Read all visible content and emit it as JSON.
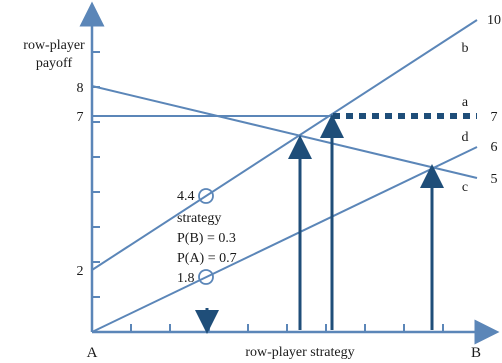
{
  "axis_labels": {
    "y_title_line1": "row-player",
    "y_title_line2": "payoff",
    "x_title": "row-player strategy",
    "x_start": "A",
    "x_end": "B"
  },
  "y_ticks": {
    "eight": "8",
    "seven": "7",
    "two": "2"
  },
  "right_values": {
    "ten": "10",
    "seven": "7",
    "six": "6",
    "five": "5"
  },
  "line_names": {
    "a": "a",
    "b": "b",
    "c": "c",
    "d": "d"
  },
  "annotations": {
    "upper_value": "4.4",
    "strategy_heading": "strategy",
    "prob_b": "P(B) = 0.3",
    "prob_a": "P(A) = 0.7",
    "lower_value": "1.8"
  },
  "colors": {
    "axis": "#5b86b8",
    "line": "#5b86b8",
    "arrow": "#1f4e79"
  }
}
